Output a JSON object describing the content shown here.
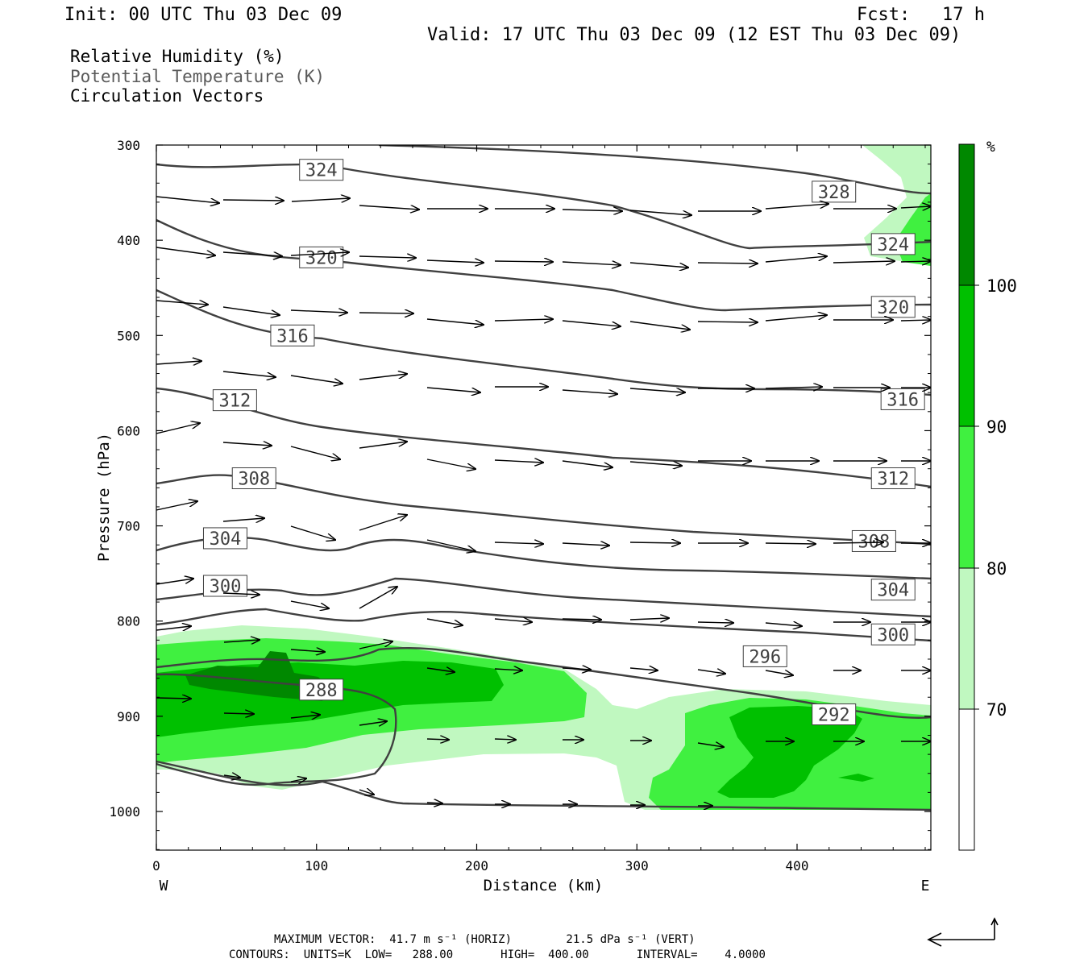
{
  "header": {
    "init": "Init: 00 UTC Thu 03 Dec 09",
    "fcst": "Fcst:   17 h",
    "valid": "Valid: 17 UTC Thu 03 Dec 09 (12 EST Thu 03 Dec 09)"
  },
  "legend": {
    "rh": "Relative Humidity (%)",
    "theta": "Potential Temperature (K)",
    "vectors": "Circulation Vectors"
  },
  "colorbar": {
    "unit": "%",
    "ticks": [
      "70",
      "80",
      "90",
      "100"
    ],
    "colors": [
      "#ffffff",
      "#c0f8c0",
      "#40f040",
      "#00c000",
      "#008800"
    ]
  },
  "footer": {
    "max_vector": "MAXIMUM VECTOR:  41.7 m s⁻¹ (HORIZ)        21.5 dPa s⁻¹ (VERT)",
    "contours": "CONTOURS:  UNITS=K  LOW=   288.00       HIGH=  400.00       INTERVAL=    4.0000"
  },
  "chart_data": {
    "type": "contour",
    "xlabel": "Distance (km)",
    "ylabel": "Pressure (hPa)",
    "x_ticks": [
      0,
      100,
      200,
      300,
      400
    ],
    "y_ticks": [
      300,
      400,
      500,
      600,
      700,
      800,
      900,
      1000
    ],
    "xlim": [
      0,
      485
    ],
    "ylim": [
      300,
      1040
    ],
    "y_inverted": true,
    "left_end": "W",
    "right_end": "E",
    "fill_variable": "Relative Humidity (%)",
    "fill_levels": [
      70,
      80,
      90,
      100
    ],
    "contour_variable": "Potential Temperature (K)",
    "contour_labels": [
      {
        "value": "324",
        "x": 103,
        "p": 326
      },
      {
        "value": "328",
        "x": 423,
        "p": 349
      },
      {
        "value": "324",
        "x": 460,
        "p": 404
      },
      {
        "value": "320",
        "x": 103,
        "p": 418
      },
      {
        "value": "320",
        "x": 460,
        "p": 470
      },
      {
        "value": "316",
        "x": 85,
        "p": 500
      },
      {
        "value": "316",
        "x": 466,
        "p": 567
      },
      {
        "value": "312",
        "x": 49,
        "p": 568
      },
      {
        "value": "312",
        "x": 460,
        "p": 650
      },
      {
        "value": "308",
        "x": 61,
        "p": 650
      },
      {
        "value": "308",
        "x": 448,
        "p": 716
      },
      {
        "value": "304",
        "x": 43,
        "p": 713
      },
      {
        "value": "304",
        "x": 460,
        "p": 767
      },
      {
        "value": "300",
        "x": 43,
        "p": 763
      },
      {
        "value": "300",
        "x": 460,
        "p": 814
      },
      {
        "value": "296",
        "x": 380,
        "p": 837
      },
      {
        "value": "292",
        "x": 423,
        "p": 898
      },
      {
        "value": "288",
        "x": 103,
        "p": 872
      }
    ],
    "vector_scale": {
      "max_horizontal": "41.7 m s⁻¹",
      "max_vertical": "21.5 dPa s⁻¹"
    },
    "contour_info": {
      "units": "K",
      "low": 288.0,
      "high": 400.0,
      "interval": 4.0
    }
  }
}
